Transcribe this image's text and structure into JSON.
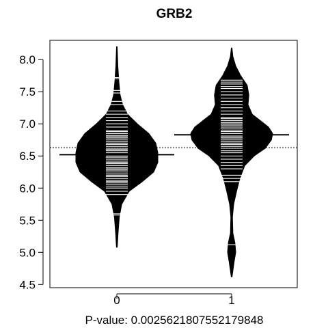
{
  "chart_data": {
    "type": "beanplot",
    "title": "GRB2",
    "xlabel": "P-value: 0.0025621807552179848",
    "ylabel": "",
    "categories": [
      "0",
      "1"
    ],
    "ylim": [
      4.45,
      8.3
    ],
    "yticks": [
      4.5,
      5.0,
      5.5,
      6.0,
      6.5,
      7.0,
      7.5,
      8.0
    ],
    "ytick_labels": [
      "4.5",
      "5.0",
      "5.5",
      "6.0",
      "6.5",
      "7.0",
      "7.5",
      "8.0"
    ],
    "overall_mean": 6.63,
    "groups": [
      {
        "name": "0",
        "mean": 6.52,
        "density": [
          [
            5.08,
            0.01
          ],
          [
            5.3,
            0.03
          ],
          [
            5.55,
            0.06
          ],
          [
            5.75,
            0.12
          ],
          [
            5.95,
            0.3
          ],
          [
            6.1,
            0.62
          ],
          [
            6.25,
            0.9
          ],
          [
            6.4,
            1.0
          ],
          [
            6.55,
            1.0
          ],
          [
            6.7,
            0.95
          ],
          [
            6.85,
            0.78
          ],
          [
            7.0,
            0.5
          ],
          [
            7.15,
            0.26
          ],
          [
            7.3,
            0.14
          ],
          [
            7.45,
            0.08
          ],
          [
            7.65,
            0.05
          ],
          [
            7.9,
            0.025
          ],
          [
            8.2,
            0.008
          ]
        ],
        "observations": [
          5.58,
          5.6,
          5.9,
          5.95,
          6.0,
          6.02,
          6.05,
          6.08,
          6.1,
          6.12,
          6.15,
          6.18,
          6.2,
          6.22,
          6.25,
          6.28,
          6.3,
          6.32,
          6.35,
          6.38,
          6.4,
          6.42,
          6.45,
          6.48,
          6.5,
          6.52,
          6.55,
          6.58,
          6.6,
          6.62,
          6.65,
          6.68,
          6.7,
          6.72,
          6.75,
          6.78,
          6.8,
          6.82,
          6.85,
          6.88,
          6.9,
          6.95,
          7.0,
          7.05,
          7.1,
          7.15,
          7.2,
          7.3,
          7.35,
          7.48,
          7.52,
          7.7,
          7.72
        ]
      },
      {
        "name": "1",
        "mean": 6.83,
        "density": [
          [
            4.62,
            0.01
          ],
          [
            4.85,
            0.06
          ],
          [
            5.0,
            0.1
          ],
          [
            5.15,
            0.08
          ],
          [
            5.3,
            0.03
          ],
          [
            5.55,
            0.02
          ],
          [
            5.75,
            0.05
          ],
          [
            5.95,
            0.12
          ],
          [
            6.15,
            0.2
          ],
          [
            6.35,
            0.32
          ],
          [
            6.5,
            0.55
          ],
          [
            6.62,
            0.82
          ],
          [
            6.75,
            0.97
          ],
          [
            6.85,
            1.0
          ],
          [
            6.95,
            0.9
          ],
          [
            7.05,
            0.7
          ],
          [
            7.15,
            0.5
          ],
          [
            7.3,
            0.4
          ],
          [
            7.45,
            0.42
          ],
          [
            7.6,
            0.38
          ],
          [
            7.75,
            0.22
          ],
          [
            7.9,
            0.1
          ],
          [
            8.05,
            0.03
          ],
          [
            8.18,
            0.008
          ]
        ],
        "observations": [
          5.12,
          6.1,
          6.15,
          6.2,
          6.3,
          6.35,
          6.4,
          6.45,
          6.5,
          6.55,
          6.58,
          6.62,
          6.65,
          6.68,
          6.7,
          6.72,
          6.75,
          6.78,
          6.8,
          6.82,
          6.85,
          6.88,
          6.9,
          6.92,
          6.95,
          6.98,
          7.0,
          7.02,
          7.05,
          7.08,
          7.1,
          7.15,
          7.2,
          7.25,
          7.3,
          7.35,
          7.4,
          7.45,
          7.5,
          7.55,
          7.58,
          7.62,
          7.65,
          7.68
        ]
      }
    ],
    "colors": {
      "bean": "#000000",
      "beanline": "#ffffff",
      "axis": "#000000"
    }
  }
}
